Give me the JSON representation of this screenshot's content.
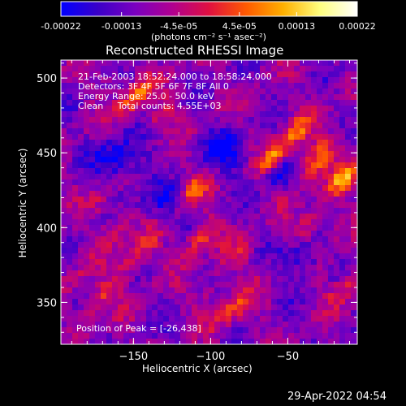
{
  "colorbar": {
    "ticks": [
      "-0.00022",
      "-0.00013",
      "-4.5e-05",
      "4.5e-05",
      "0.00013",
      "0.00022"
    ],
    "tick_values": [
      -0.00022,
      -0.00013,
      -4.5e-05,
      4.5e-05,
      0.00013,
      0.00022
    ],
    "range": [
      -0.00022,
      0.00022
    ],
    "unit_label": "(photons cm⁻² s⁻¹ asec⁻²)",
    "gradient_colors": [
      "#0000ff",
      "#3a00c8",
      "#7a00c0",
      "#b00090",
      "#e01040",
      "#ff5a00",
      "#ffb000",
      "#ffff80",
      "#ffffff"
    ]
  },
  "chart_data": {
    "type": "heatmap",
    "title": "Reconstructed RHESSI Image",
    "xlabel": "Heliocentric X (arcsec)",
    "ylabel": "Heliocentric Y (arcsec)",
    "xlim": [
      -197,
      -5
    ],
    "ylim": [
      322,
      512
    ],
    "x_ticks": [
      -150,
      -100,
      -50
    ],
    "y_ticks": [
      350,
      400,
      450,
      500
    ],
    "annotations": [
      "21-Feb-2003 18:52:24.000 to 18:58:24.000",
      "Detectors: 3F 4F 5F 6F 7F 8F All 0",
      "Energy Range: 25.0 - 50.0 keV",
      "Clean     Total counts: 4.55E+03"
    ],
    "peak_label": "Position of Peak = [-26,438]",
    "peak_position": [
      -26,
      438
    ]
  },
  "footer": {
    "timestamp": "29-Apr-2022 04:54"
  }
}
